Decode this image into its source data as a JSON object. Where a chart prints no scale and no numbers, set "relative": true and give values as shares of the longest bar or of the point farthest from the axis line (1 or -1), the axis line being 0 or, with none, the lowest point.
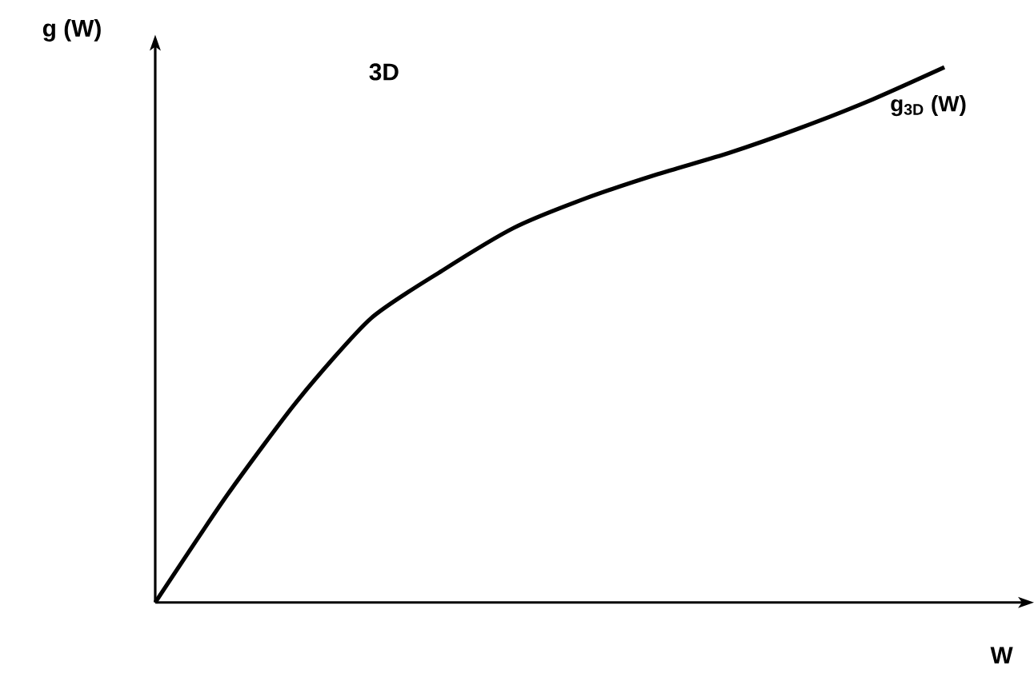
{
  "chart_data": {
    "type": "line",
    "title": "3D",
    "xlabel": "W",
    "ylabel": "g (W)",
    "relative": true,
    "categories": [
      null,
      null,
      null,
      null,
      null,
      null,
      null,
      null,
      null,
      null,
      null,
      null
    ],
    "series": [
      {
        "name": "g$_{3D}$ (W)",
        "color": "#000000",
        "values": [
          0,
          0.2,
          0.38,
          0.53,
          0.62,
          0.7,
          0.755,
          0.8,
          0.84,
          0.887,
          0.94,
          1
        ]
      }
    ]
  }
}
